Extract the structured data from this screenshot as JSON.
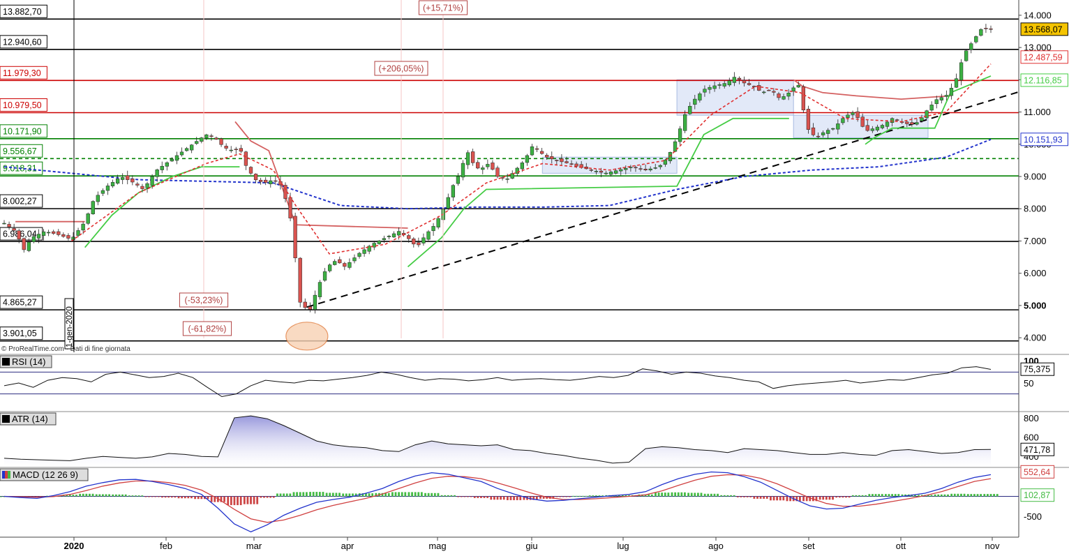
{
  "attribution": "© ProRealTime.com · Dati di fine giornata",
  "colors": {
    "candle_up": "#3cb043",
    "candle_down": "#d9534f",
    "resistance": "#cc0000",
    "support": "#008000",
    "neutral": "#000000",
    "ma_slow": "#2233cc",
    "ma_fast": "#e03030",
    "supertrend_up": "#44cc44",
    "supertrend_down": "#d46060",
    "trendline": "#000000",
    "price_badge": "#f5c400",
    "atr_fill": "#8c8cd8",
    "macd_line": "#2233cc",
    "signal_line": "#d04040",
    "hist_pos": "#44bb44",
    "hist_neg": "#cc4444"
  },
  "chart_data": [
    {
      "type": "candlestick",
      "name": "price",
      "x_labels": [
        "2020",
        "feb",
        "mar",
        "apr",
        "mag",
        "giu",
        "lug",
        "ago",
        "set",
        "ott",
        "nov"
      ],
      "y_ticks": [
        "4.000",
        "5.000",
        "6.000",
        "7.000",
        "8.000",
        "9.000",
        "10.000",
        "11.000",
        "12.000",
        "13.000",
        "14.000"
      ],
      "ylim": [
        3700,
        14300
      ],
      "last_price": "13.568,07",
      "last_price_value": 13568.07,
      "start_marker": "1-gen-2020",
      "horizontal_levels": [
        {
          "label": "13.882,70",
          "value": 13882.7,
          "kind": "neutral"
        },
        {
          "label": "12.940,60",
          "value": 12940.6,
          "kind": "neutral"
        },
        {
          "label": "11.979,30",
          "value": 11979.3,
          "kind": "resistance"
        },
        {
          "label": "10.979,50",
          "value": 10979.5,
          "kind": "resistance"
        },
        {
          "label": "10.171,90",
          "value": 10171.9,
          "kind": "support"
        },
        {
          "label": "9.556,67",
          "value": 9556.67,
          "kind": "support_dashed"
        },
        {
          "label": "9.018,31",
          "value": 9018.31,
          "kind": "support"
        },
        {
          "label": "8.002,27",
          "value": 8002.27,
          "kind": "neutral"
        },
        {
          "label": "6.986,04",
          "value": 6986.04,
          "kind": "neutral"
        },
        {
          "label": "4.865,27",
          "value": 4865.27,
          "kind": "neutral"
        },
        {
          "label": "3.901,05",
          "value": 3901.05,
          "kind": "neutral"
        }
      ],
      "right_badges": [
        {
          "label": "12.487,59",
          "value": 12487.59,
          "series": "ma_fast"
        },
        {
          "label": "12.116,85",
          "value": 12116.85,
          "series": "supertrend_up"
        },
        {
          "label": "10.151,93",
          "value": 10151.93,
          "series": "ma_slow"
        }
      ],
      "annotations": [
        {
          "text": "(+15,71%)",
          "kind": "up"
        },
        {
          "text": "(+206,05%)",
          "kind": "up"
        },
        {
          "text": "(-53,23%)",
          "kind": "down"
        },
        {
          "text": "(-61,82%)",
          "kind": "down"
        }
      ],
      "price_path": [
        [
          0,
          7550
        ],
        [
          5,
          7300
        ],
        [
          9,
          6700
        ],
        [
          12,
          7100
        ],
        [
          18,
          7300
        ],
        [
          24,
          7200
        ],
        [
          30,
          7050
        ],
        [
          36,
          7600
        ],
        [
          40,
          8300
        ],
        [
          46,
          8700
        ],
        [
          52,
          9000
        ],
        [
          58,
          8800
        ],
        [
          62,
          8600
        ],
        [
          68,
          9200
        ],
        [
          74,
          9500
        ],
        [
          80,
          9800
        ],
        [
          86,
          10100
        ],
        [
          90,
          10300
        ],
        [
          94,
          10200
        ],
        [
          98,
          9900
        ],
        [
          102,
          9800
        ],
        [
          105,
          9900
        ],
        [
          108,
          9300
        ],
        [
          112,
          8900
        ],
        [
          116,
          8800
        ],
        [
          120,
          8900
        ],
        [
          124,
          8700
        ],
        [
          128,
          7600
        ],
        [
          132,
          5100
        ],
        [
          136,
          4800
        ],
        [
          140,
          5600
        ],
        [
          144,
          6200
        ],
        [
          148,
          6400
        ],
        [
          152,
          6200
        ],
        [
          158,
          6600
        ],
        [
          164,
          6900
        ],
        [
          170,
          7100
        ],
        [
          176,
          7300
        ],
        [
          180,
          7100
        ],
        [
          184,
          6800
        ],
        [
          188,
          7200
        ],
        [
          192,
          7500
        ],
        [
          196,
          8000
        ],
        [
          200,
          8700
        ],
        [
          204,
          9200
        ],
        [
          206,
          9900
        ],
        [
          208,
          9500
        ],
        [
          212,
          9200
        ],
        [
          216,
          9400
        ],
        [
          220,
          9000
        ],
        [
          224,
          8900
        ],
        [
          228,
          9200
        ],
        [
          232,
          9500
        ],
        [
          236,
          10000
        ],
        [
          238,
          9800
        ],
        [
          242,
          9600
        ],
        [
          246,
          9500
        ],
        [
          252,
          9400
        ],
        [
          256,
          9300
        ],
        [
          262,
          9200
        ],
        [
          268,
          9100
        ],
        [
          274,
          9200
        ],
        [
          280,
          9300
        ],
        [
          286,
          9200
        ],
        [
          292,
          9300
        ],
        [
          296,
          9600
        ],
        [
          300,
          10200
        ],
        [
          304,
          11000
        ],
        [
          308,
          11400
        ],
        [
          312,
          11700
        ],
        [
          316,
          11800
        ],
        [
          322,
          11900
        ],
        [
          326,
          12100
        ],
        [
          330,
          11900
        ],
        [
          334,
          11800
        ],
        [
          338,
          11600
        ],
        [
          342,
          11700
        ],
        [
          346,
          11400
        ],
        [
          350,
          11600
        ],
        [
          354,
          11900
        ],
        [
          358,
          10500
        ],
        [
          362,
          10200
        ],
        [
          366,
          10400
        ],
        [
          370,
          10500
        ],
        [
          374,
          10800
        ],
        [
          378,
          11000
        ],
        [
          380,
          10900
        ],
        [
          384,
          10400
        ],
        [
          388,
          10500
        ],
        [
          392,
          10600
        ],
        [
          396,
          10800
        ],
        [
          400,
          10700
        ],
        [
          404,
          10600
        ],
        [
          408,
          10700
        ],
        [
          412,
          11100
        ],
        [
          416,
          11400
        ],
        [
          420,
          11500
        ],
        [
          424,
          11900
        ],
        [
          428,
          12800
        ],
        [
          432,
          13200
        ],
        [
          436,
          13600
        ],
        [
          440,
          13568
        ]
      ],
      "ma_slow_path": [
        [
          0,
          9300
        ],
        [
          30,
          9100
        ],
        [
          60,
          8900
        ],
        [
          90,
          8850
        ],
        [
          120,
          8800
        ],
        [
          150,
          8100
        ],
        [
          180,
          8000
        ],
        [
          210,
          8050
        ],
        [
          240,
          8050
        ],
        [
          270,
          8100
        ],
        [
          300,
          8600
        ],
        [
          330,
          9000
        ],
        [
          360,
          9200
        ],
        [
          390,
          9300
        ],
        [
          420,
          9600
        ],
        [
          440,
          10150
        ]
      ],
      "ma_fast_path": [
        [
          30,
          7000
        ],
        [
          60,
          8500
        ],
        [
          90,
          9400
        ],
        [
          105,
          9700
        ],
        [
          120,
          9200
        ],
        [
          130,
          8100
        ],
        [
          145,
          6600
        ],
        [
          170,
          6900
        ],
        [
          195,
          7800
        ],
        [
          215,
          8800
        ],
        [
          240,
          9400
        ],
        [
          270,
          9200
        ],
        [
          295,
          9500
        ],
        [
          315,
          10900
        ],
        [
          335,
          11800
        ],
        [
          355,
          11600
        ],
        [
          375,
          10800
        ],
        [
          400,
          10700
        ],
        [
          420,
          11000
        ],
        [
          440,
          12490
        ]
      ],
      "supertrend_up_segments": [
        [
          [
            36,
            6800
          ],
          [
            48,
            7800
          ],
          [
            60,
            8500
          ],
          [
            75,
            9000
          ],
          [
            88,
            9300
          ],
          [
            105,
            9300
          ]
        ],
        [
          [
            180,
            6200
          ],
          [
            195,
            7100
          ],
          [
            205,
            8000
          ],
          [
            215,
            8600
          ],
          [
            300,
            8700
          ],
          [
            312,
            10300
          ],
          [
            325,
            10800
          ],
          [
            350,
            10800
          ]
        ],
        [
          [
            384,
            10000
          ],
          [
            388,
            10200
          ],
          [
            396,
            10500
          ],
          [
            405,
            10500
          ],
          [
            415,
            10500
          ],
          [
            422,
            11600
          ],
          [
            436,
            12000
          ],
          [
            440,
            12117
          ]
        ]
      ],
      "supertrend_down_segments": [
        [
          [
            5,
            7600
          ],
          [
            36,
            7600
          ]
        ],
        [
          [
            103,
            10700
          ],
          [
            110,
            10100
          ],
          [
            118,
            9800
          ],
          [
            130,
            7500
          ],
          [
            180,
            7400
          ]
        ],
        [
          [
            352,
            12000
          ],
          [
            356,
            11800
          ],
          [
            365,
            11600
          ],
          [
            380,
            11500
          ],
          [
            400,
            11400
          ],
          [
            422,
            11500
          ]
        ]
      ],
      "trendline": [
        [
          135,
          4950
        ],
        [
          440,
          11450
        ]
      ],
      "highlight_boxes": [
        {
          "from": 300,
          "to": 352,
          "lo": 10900,
          "hi": 12000
        },
        {
          "from": 240,
          "to": 300,
          "lo": 9100,
          "hi": 9600
        },
        {
          "from": 352,
          "to": 412,
          "lo": 10200,
          "hi": 10900
        }
      ]
    },
    {
      "type": "line",
      "name": "RSI (14)",
      "label": "RSI (14)",
      "y_ticks": [
        "100",
        "50"
      ],
      "last_value": "75,375",
      "ylim": [
        0,
        100
      ],
      "upper": 70,
      "lower": 30,
      "values": [
        45,
        50,
        42,
        55,
        60,
        58,
        52,
        66,
        70,
        65,
        60,
        62,
        68,
        60,
        42,
        25,
        30,
        45,
        55,
        52,
        50,
        55,
        54,
        57,
        60,
        64,
        70,
        66,
        60,
        55,
        58,
        57,
        54,
        56,
        60,
        55,
        57,
        58,
        56,
        55,
        58,
        62,
        60,
        64,
        76,
        72,
        66,
        70,
        68,
        63,
        60,
        55,
        52,
        40,
        45,
        48,
        50,
        52,
        55,
        50,
        53,
        56,
        55,
        60,
        65,
        68,
        78,
        80,
        75
      ]
    },
    {
      "type": "area",
      "name": "ATR (14)",
      "label": "ATR (14)",
      "y_ticks": [
        "800",
        "600",
        "400"
      ],
      "last_value": "471,78",
      "ylim": [
        300,
        850
      ],
      "values": [
        380,
        370,
        365,
        360,
        355,
        380,
        400,
        390,
        380,
        395,
        430,
        420,
        400,
        395,
        800,
        820,
        790,
        720,
        640,
        560,
        520,
        500,
        490,
        460,
        450,
        520,
        560,
        530,
        520,
        510,
        520,
        470,
        460,
        430,
        410,
        380,
        360,
        330,
        340,
        480,
        500,
        490,
        470,
        460,
        440,
        480,
        470,
        460,
        440,
        420,
        420,
        440,
        420,
        410,
        460,
        470,
        450,
        430,
        440,
        470,
        472
      ]
    },
    {
      "type": "line",
      "name": "MACD (12 26 9)",
      "label": "MACD (12 26 9)",
      "y_ticks": [
        "-500"
      ],
      "macd_last": "552,64",
      "histogram_last": "102,87",
      "ylim": [
        -1000,
        700
      ],
      "macd": [
        0,
        -30,
        -50,
        20,
        120,
        260,
        350,
        420,
        430,
        380,
        300,
        200,
        50,
        -300,
        -700,
        -900,
        -720,
        -480,
        -300,
        -150,
        -80,
        -20,
        80,
        200,
        380,
        520,
        600,
        560,
        470,
        380,
        200,
        60,
        -60,
        -120,
        -100,
        -60,
        -20,
        20,
        50,
        120,
        300,
        450,
        560,
        620,
        600,
        500,
        360,
        150,
        -60,
        -240,
        -320,
        -300,
        -200,
        -100,
        -30,
        20,
        80,
        200,
        360,
        480,
        552
      ],
      "signal": [
        0,
        -10,
        -20,
        -5,
        50,
        150,
        260,
        340,
        390,
        390,
        350,
        280,
        160,
        -60,
        -330,
        -570,
        -660,
        -600,
        -480,
        -340,
        -230,
        -140,
        -50,
        60,
        200,
        340,
        460,
        510,
        500,
        450,
        340,
        220,
        90,
        -20,
        -80,
        -80,
        -60,
        -30,
        0,
        40,
        140,
        280,
        410,
        510,
        550,
        540,
        460,
        320,
        140,
        -40,
        -180,
        -250,
        -250,
        -200,
        -130,
        -60,
        20,
        120,
        250,
        380,
        450
      ]
    }
  ]
}
